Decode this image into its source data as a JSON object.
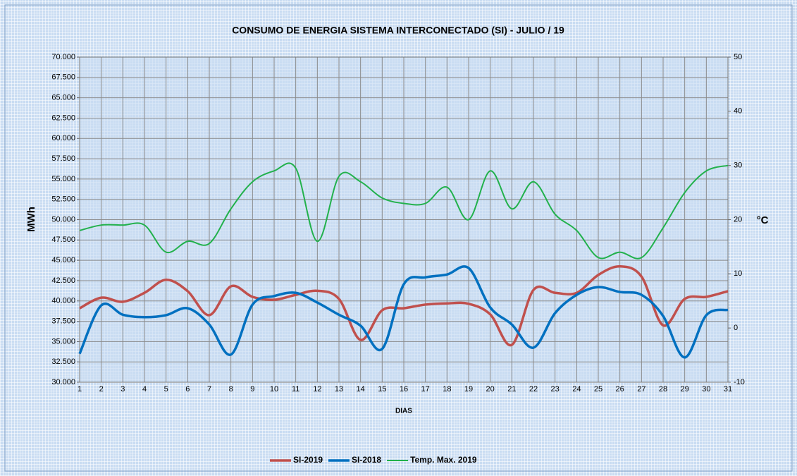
{
  "chart_data": {
    "type": "line",
    "title": "CONSUMO DE ENERGIA SISTEMA INTERCONECTADO (SI) -  JULIO / 19",
    "xlabel": "DIAS",
    "ylabel": "MWh",
    "y2label": "°C",
    "x": [
      1,
      2,
      3,
      4,
      5,
      6,
      7,
      8,
      9,
      10,
      11,
      12,
      13,
      14,
      15,
      16,
      17,
      18,
      19,
      20,
      21,
      22,
      23,
      24,
      25,
      26,
      27,
      28,
      29,
      30,
      31
    ],
    "xlim": [
      1,
      31
    ],
    "xticks": [
      1,
      2,
      3,
      4,
      5,
      6,
      7,
      8,
      9,
      10,
      11,
      12,
      13,
      14,
      15,
      16,
      17,
      18,
      19,
      20,
      21,
      22,
      23,
      24,
      25,
      26,
      27,
      28,
      29,
      30,
      31
    ],
    "ylim": [
      30000,
      70000
    ],
    "yticks": [
      {
        "value": 30000,
        "label": "30.000"
      },
      {
        "value": 32500,
        "label": "32.500"
      },
      {
        "value": 35000,
        "label": "35.000"
      },
      {
        "value": 37500,
        "label": "37.500"
      },
      {
        "value": 40000,
        "label": "40.000"
      },
      {
        "value": 42500,
        "label": "42.500"
      },
      {
        "value": 45000,
        "label": "45.000"
      },
      {
        "value": 47500,
        "label": "47.500"
      },
      {
        "value": 50000,
        "label": "50.000"
      },
      {
        "value": 52500,
        "label": "52.500"
      },
      {
        "value": 55000,
        "label": "55.000"
      },
      {
        "value": 57500,
        "label": "57.500"
      },
      {
        "value": 60000,
        "label": "60.000"
      },
      {
        "value": 62500,
        "label": "62.500"
      },
      {
        "value": 65000,
        "label": "65.000"
      },
      {
        "value": 67500,
        "label": "67.500"
      },
      {
        "value": 70000,
        "label": "70.000"
      }
    ],
    "y2lim": [
      -10,
      50
    ],
    "y2ticks": [
      -10,
      0,
      10,
      20,
      30,
      40,
      50
    ],
    "grid": true,
    "legend": "bottom",
    "series": [
      {
        "name": "SI-2019",
        "color": "#c0504d",
        "width": 3.5,
        "values": [
          39100,
          40400,
          39900,
          41000,
          42600,
          41200,
          38250,
          41800,
          40500,
          40150,
          40750,
          41250,
          40250,
          35200,
          38850,
          39100,
          39550,
          39700,
          39650,
          38350,
          34600,
          41350,
          41000,
          41000,
          43200,
          44250,
          43000,
          37000,
          40250,
          40500,
          41200
        ]
      },
      {
        "name": "SI-2018",
        "color": "#0070c0",
        "width": 3.5,
        "values": [
          33500,
          39450,
          38300,
          38000,
          38250,
          39100,
          37100,
          33400,
          39550,
          40600,
          41000,
          39800,
          38300,
          36950,
          34100,
          42050,
          42900,
          43250,
          44050,
          39200,
          37100,
          34250,
          38500,
          40750,
          41700,
          41100,
          40750,
          38150,
          33050,
          38250,
          38900
        ]
      },
      {
        "name": "Temp. Max. 2019",
        "color": "#22b14c",
        "width": 2,
        "axis": "y2",
        "values": [
          18,
          19,
          19,
          19,
          14,
          16,
          15.6,
          22,
          27,
          29,
          29.5,
          16,
          28,
          27,
          24,
          23,
          23,
          26,
          20,
          29,
          22,
          27,
          21,
          18,
          13,
          14,
          13,
          18.5,
          25,
          29,
          30
        ]
      }
    ]
  }
}
